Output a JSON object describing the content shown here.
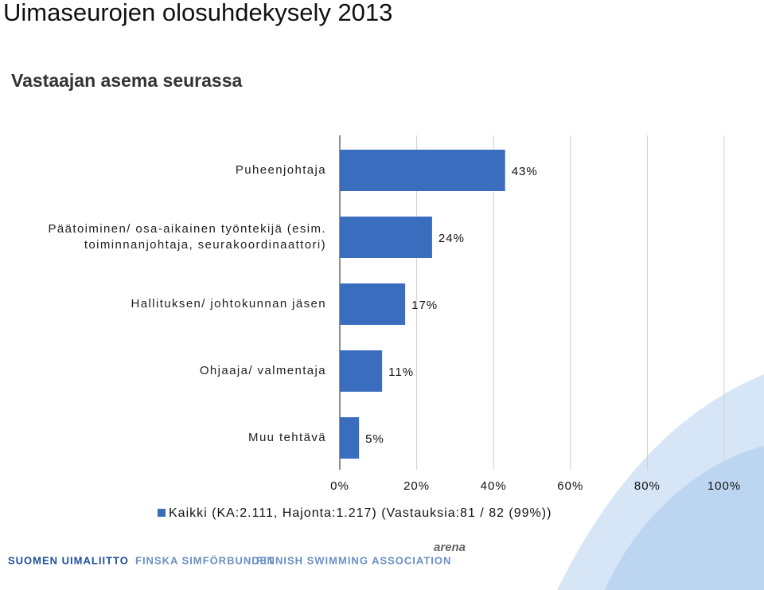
{
  "chart_data": {
    "type": "barh",
    "title": "Uimaseurojen olosuhdekysely 2013",
    "subtitle": "Vastaajan asema seurassa",
    "categories": [
      "Puheenjohtaja",
      "Päätoiminen/ osa-aikainen työntekijä (esim.\ntoiminnanjohtaja, seurakoordinaattori)",
      "Hallituksen/ johtokunnan jäsen",
      "Ohjaaja/ valmentaja",
      "Muu tehtävä"
    ],
    "series": [
      {
        "name": "Kaikki (KA:2.111, Hajonta:1.217) (Vastauksia:81 / 82 (99%))",
        "color": "#3a6dbd",
        "values": [
          43,
          24,
          17,
          11,
          5
        ],
        "value_labels": [
          "43%",
          "24%",
          "17%",
          "11%",
          "5%"
        ]
      }
    ],
    "xlim": [
      0,
      100
    ],
    "xticks": [
      {
        "value": 0,
        "label": "0%"
      },
      {
        "value": 20,
        "label": "20%"
      },
      {
        "value": 40,
        "label": "40%"
      },
      {
        "value": 60,
        "label": "60%"
      },
      {
        "value": 80,
        "label": "80%"
      },
      {
        "value": 100,
        "label": "100%"
      }
    ],
    "grid": true,
    "legend": "bottom"
  },
  "footer": {
    "org": "SUOMEN UIMALIITTO",
    "org_sv": "FINSKA SIMFÖRBUNDET",
    "org_en": "FINNISH SWIMMING ASSOCIATION",
    "sponsor": "arena"
  }
}
